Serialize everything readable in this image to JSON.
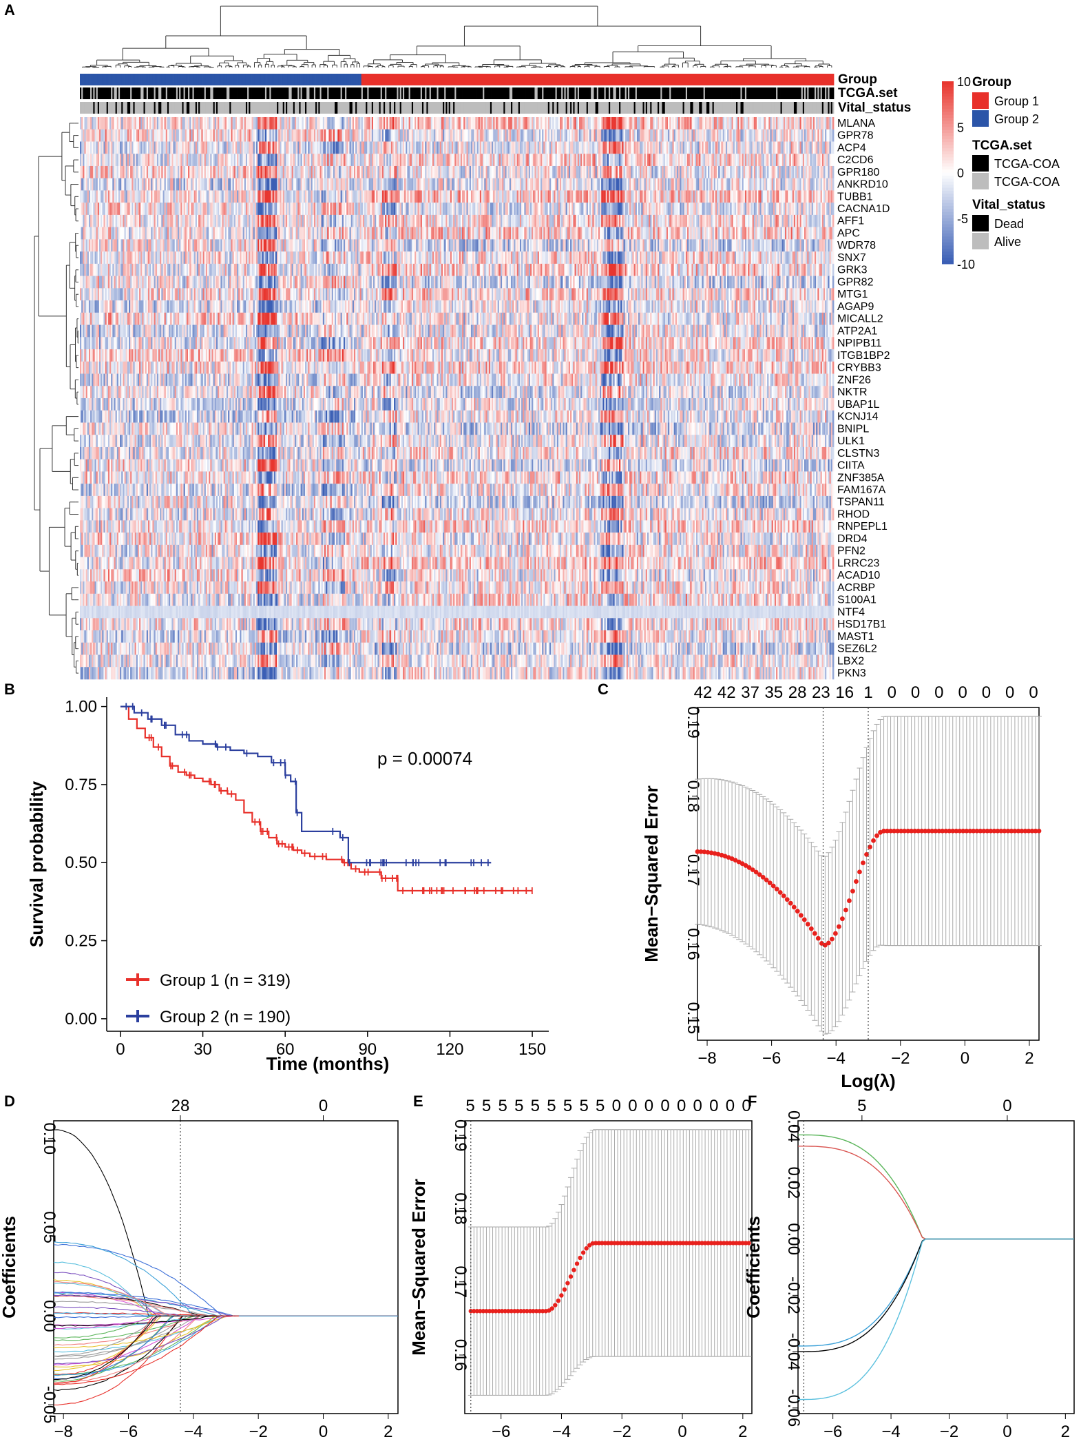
{
  "panel_letters": [
    "A",
    "B",
    "C",
    "D",
    "E",
    "F"
  ],
  "chart_data": [
    {
      "id": "A",
      "type": "heatmap",
      "annotation_rows": [
        "Group",
        "TCGA.set",
        "Vital_status"
      ],
      "genes": [
        "MLANA",
        "GPR78",
        "ACP4",
        "C2CD6",
        "GPR180",
        "ANKRD10",
        "TUBB1",
        "CACNA1D",
        "AFF1",
        "APC",
        "WDR78",
        "SNX7",
        "GRK3",
        "GPR82",
        "MTG1",
        "AGAP9",
        "MICALL2",
        "ATP2A1",
        "NPIPB11",
        "ITGB1BP2",
        "CRYBB3",
        "ZNF26",
        "NKTR",
        "UBAP1L",
        "KCNJ14",
        "BNIPL",
        "ULK1",
        "CLSTN3",
        "CIITA",
        "ZNF385A",
        "FAM167A",
        "TSPAN11",
        "RHOD",
        "RNPEPL1",
        "DRD4",
        "PFN2",
        "LRRC23",
        "ACAD10",
        "ACRBP",
        "S100A1",
        "NTF4",
        "HSD17B1",
        "MAST1",
        "SEZ6L2",
        "LBX2",
        "PKN3"
      ],
      "n_samples": 509,
      "group_split": {
        "Group 2": 190,
        "Group 1": 319
      },
      "color_scale": {
        "min": -10,
        "max": 10,
        "ticks": [
          "10",
          "5",
          "0",
          "-5",
          "-10"
        ],
        "low": "#3b5fb5",
        "mid": "#ffffff",
        "high": "#e8362f"
      },
      "legend": {
        "group_title": "Group",
        "group_items": [
          {
            "label": "Group 1",
            "color": "#e8302a"
          },
          {
            "label": "Group 2",
            "color": "#2b55a8"
          }
        ],
        "set_title": "TCGA.set",
        "set_items": [
          {
            "label": "TCGA-COA",
            "color": "#000000"
          },
          {
            "label": "TCGA-COA",
            "color": "#bdbdbd"
          }
        ],
        "vital_title": "Vital_status",
        "vital_items": [
          {
            "label": "Dead",
            "color": "#000000"
          },
          {
            "label": "Alive",
            "color": "#bdbdbd"
          }
        ]
      }
    },
    {
      "id": "B",
      "type": "line",
      "title": "",
      "xlabel": "Time (months)",
      "ylabel": "Survival probability",
      "xlim": [
        0,
        150
      ],
      "ylim": [
        0,
        1
      ],
      "xticks": [
        "0",
        "30",
        "60",
        "90",
        "120",
        "150"
      ],
      "yticks": [
        "0.00",
        "0.25",
        "0.50",
        "0.75",
        "1.00"
      ],
      "pvalue_text": "p = 0.00074",
      "series": [
        {
          "name": "Group 1 (n = 319)",
          "color": "#e8302a",
          "x": [
            0,
            3,
            6,
            9,
            12,
            15,
            18,
            21,
            24,
            27,
            30,
            33,
            36,
            39,
            42,
            45,
            48,
            51,
            54,
            57,
            60,
            63,
            66,
            69,
            72,
            75,
            78,
            81,
            84,
            87,
            90,
            95,
            101,
            110,
            120,
            130,
            140,
            150
          ],
          "y": [
            1.0,
            0.96,
            0.93,
            0.9,
            0.87,
            0.84,
            0.81,
            0.79,
            0.78,
            0.77,
            0.76,
            0.75,
            0.73,
            0.72,
            0.7,
            0.66,
            0.63,
            0.6,
            0.58,
            0.56,
            0.55,
            0.54,
            0.53,
            0.52,
            0.52,
            0.51,
            0.51,
            0.5,
            0.48,
            0.47,
            0.47,
            0.45,
            0.41,
            0.41,
            0.41,
            0.41,
            0.41,
            0.41
          ]
        },
        {
          "name": "Group 2 (n = 190)",
          "color": "#2b3f9e",
          "x": [
            0,
            5,
            10,
            15,
            20,
            25,
            30,
            35,
            40,
            45,
            50,
            55,
            60,
            62,
            64,
            66,
            70,
            75,
            80,
            83,
            86,
            90,
            100,
            110,
            120,
            130,
            135
          ],
          "y": [
            1.0,
            0.98,
            0.96,
            0.94,
            0.91,
            0.89,
            0.88,
            0.87,
            0.86,
            0.85,
            0.84,
            0.82,
            0.78,
            0.76,
            0.66,
            0.6,
            0.6,
            0.6,
            0.58,
            0.5,
            0.5,
            0.5,
            0.5,
            0.5,
            0.5,
            0.5,
            0.5
          ]
        }
      ]
    },
    {
      "id": "C",
      "type": "scatter",
      "xlabel": "Log(λ)",
      "ylabel": "Mean−Squared Error",
      "xlim": [
        -8.3,
        2.3
      ],
      "ylim": [
        0.147,
        0.192
      ],
      "xticks": [
        -8,
        -6,
        -4,
        -2,
        0,
        2
      ],
      "yticks": [
        0.15,
        0.16,
        0.17,
        0.18,
        0.19
      ],
      "top_axis_labels": [
        "42",
        "42",
        "37",
        "35",
        "28",
        "23",
        "16",
        "1",
        "0",
        "0",
        "0",
        "0",
        "0",
        "0",
        "0"
      ],
      "vlines": [
        -4.4,
        -3.0
      ],
      "curve": {
        "xmin": -8.3,
        "xmax": 2.3,
        "n": 100,
        "left_value": 0.1725,
        "min_x": -4.4,
        "min_value": 0.1598,
        "plateau_x": -2.5,
        "plateau_value": 0.1753
      },
      "errorbar": {
        "left_se": 0.0098,
        "min_se": 0.0119,
        "plateau_se": 0.0155
      }
    },
    {
      "id": "D",
      "type": "line",
      "xlabel": "Log Lambda",
      "ylabel": "Coefficients",
      "xlim": [
        -8.3,
        2.3
      ],
      "ylim": [
        -0.055,
        0.11
      ],
      "xticks": [
        -8,
        -6,
        -4,
        -2,
        0,
        2
      ],
      "yticks": [
        -0.05,
        0.0,
        0.05,
        0.1
      ],
      "top_axis_labels": [
        "28",
        "0"
      ],
      "top_axis_positions": [
        -4.4,
        0
      ],
      "vline": -4.4,
      "n_paths": 46
    },
    {
      "id": "E",
      "type": "scatter",
      "xlabel": "Log(λ)",
      "ylabel": "Mean−Squared Error",
      "xlim": [
        -7.2,
        2.3
      ],
      "ylim": [
        0.152,
        0.192
      ],
      "xticks": [
        -6,
        -4,
        -2,
        0,
        2
      ],
      "yticks": [
        0.16,
        0.17,
        0.18,
        0.19
      ],
      "top_axis_labels": [
        "5",
        "5",
        "5",
        "5",
        "5",
        "5",
        "5",
        "5",
        "5",
        "0",
        "0",
        "0",
        "0",
        "0",
        "0",
        "0",
        "0",
        "0"
      ],
      "vline": -7.0,
      "curve": {
        "left_value": 0.166,
        "right_value": 0.1753,
        "transition_start": -4.5,
        "transition_end": -2.9
      },
      "errorbar": {
        "left_se": 0.0115,
        "right_se": 0.0155
      }
    },
    {
      "id": "F",
      "type": "line",
      "xlabel": "Log Lambda",
      "ylabel": "Coefficients",
      "xlim": [
        -7.2,
        2.3
      ],
      "ylim": [
        -0.062,
        0.042
      ],
      "xticks": [
        -6,
        -4,
        -2,
        0,
        2
      ],
      "yticks": [
        -0.06,
        -0.04,
        -0.02,
        0.0,
        0.02,
        0.04
      ],
      "top_axis_labels": [
        "5",
        "0"
      ],
      "top_axis_positions": [
        -5.0,
        0
      ],
      "vline": -7.0,
      "paths": [
        {
          "color": "#5ab55a",
          "start": 0.037
        },
        {
          "color": "#d9534f",
          "start": 0.033
        },
        {
          "color": "#3aa0d8",
          "start": -0.038
        },
        {
          "color": "#000000",
          "start": -0.04
        },
        {
          "color": "#5bc0de",
          "start": -0.057
        }
      ]
    }
  ]
}
